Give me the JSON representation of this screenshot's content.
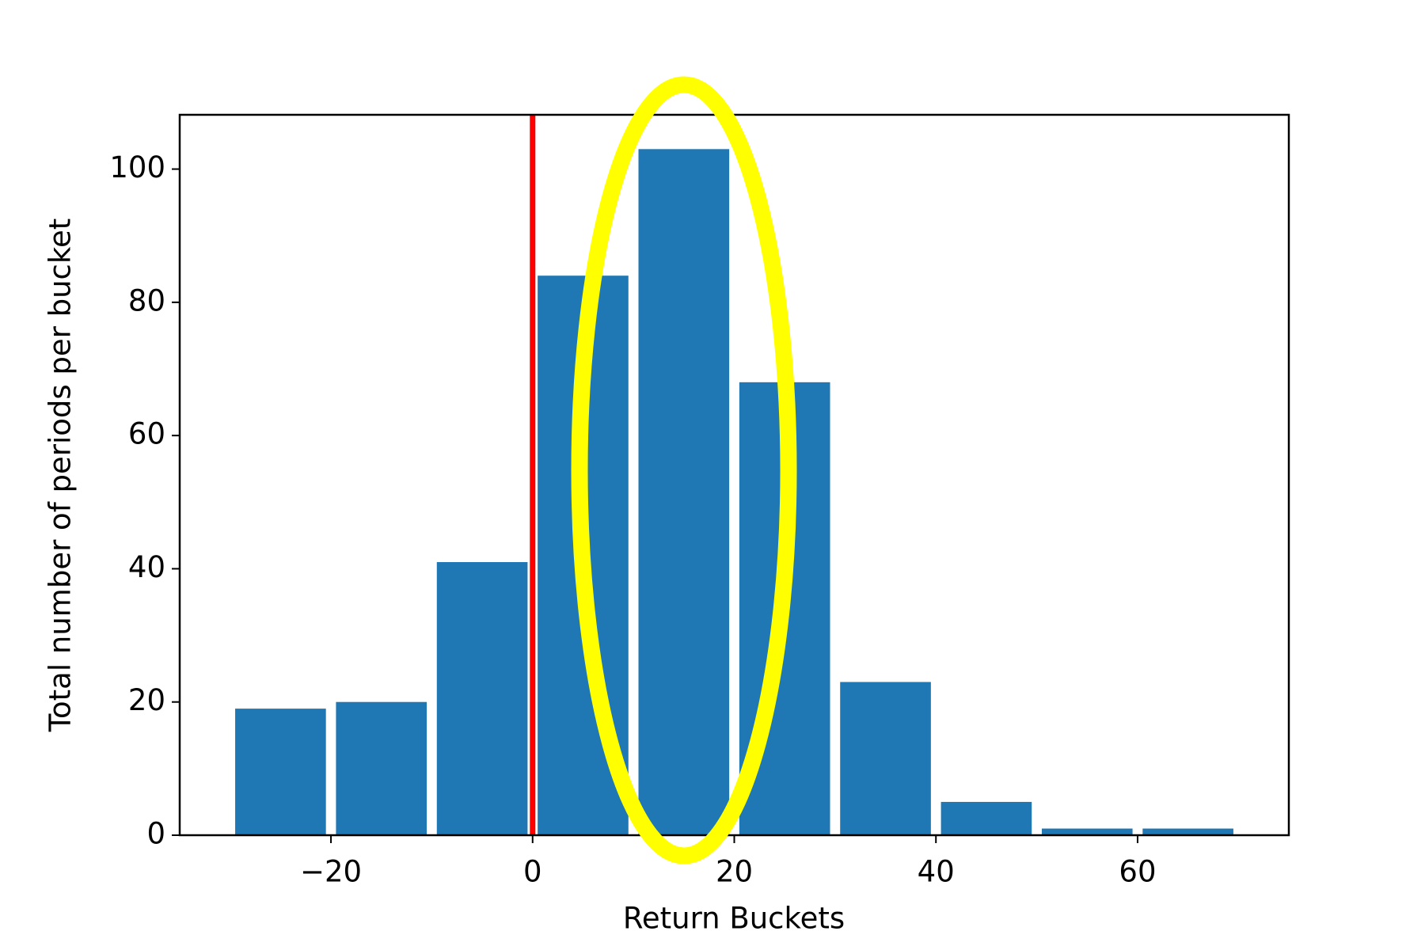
{
  "chart_data": {
    "type": "histogram",
    "xlabel": "Return Buckets",
    "ylabel": "Total number of periods per bucket",
    "bins": [
      -30,
      -20,
      -10,
      0,
      10,
      20,
      30,
      40,
      50,
      60,
      70
    ],
    "values": [
      19,
      20,
      41,
      84,
      103,
      68,
      23,
      5,
      1,
      1
    ],
    "color": "#1f77b4",
    "xlim": [
      -35,
      75
    ],
    "ylim": [
      0,
      108.15
    ],
    "xticks": [
      {
        "value": -20,
        "label": "−20"
      },
      0,
      20,
      40,
      60
    ],
    "yticks": [
      0,
      20,
      40,
      60,
      80,
      100
    ],
    "vline": {
      "x": 0,
      "color": "#ff0000"
    }
  }
}
